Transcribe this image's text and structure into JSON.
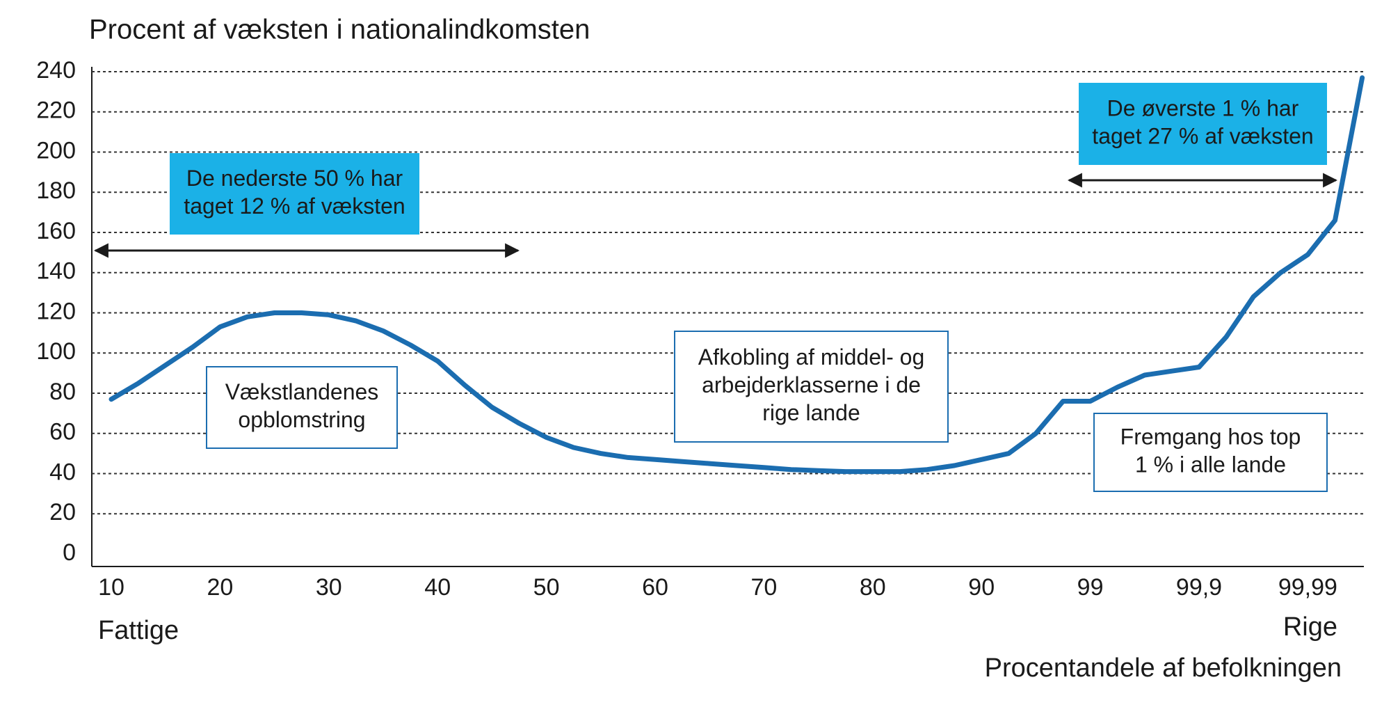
{
  "chart_data": {
    "type": "line",
    "title": "Procent af væksten i nationalindkomsten",
    "x_label": "Procentandele af befolkningen",
    "x_left_label": "Fattige",
    "x_right_label": "Rige",
    "categories": [
      "10",
      null,
      null,
      null,
      "20",
      null,
      null,
      null,
      "30",
      null,
      null,
      null,
      "40",
      null,
      null,
      null,
      "50",
      null,
      null,
      null,
      "60",
      null,
      null,
      null,
      "70",
      null,
      null,
      null,
      "80",
      null,
      null,
      null,
      "90",
      null,
      null,
      null,
      "99",
      null,
      null,
      null,
      "99,9",
      null,
      null,
      null,
      "99,99",
      null,
      null
    ],
    "values": [
      77,
      85,
      94,
      103,
      113,
      118,
      120,
      120,
      119,
      116,
      111,
      104,
      96,
      84,
      73,
      65,
      58,
      53,
      50,
      48,
      47,
      46,
      45,
      44,
      43,
      42,
      41.5,
      41,
      41,
      41,
      42,
      44,
      47,
      50,
      60,
      76,
      76,
      83,
      89,
      91,
      93,
      108,
      128,
      140,
      149,
      166,
      237
    ],
    "color": "#1b6db0",
    "ylim": [
      0,
      240
    ],
    "yticks": [
      0,
      20,
      40,
      60,
      80,
      100,
      120,
      140,
      160,
      180,
      200,
      220,
      240
    ],
    "grid": true,
    "annotations": [
      {
        "lines": [
          "De nederste 50 % har",
          "taget 12 % af væksten"
        ],
        "style": "filled"
      },
      {
        "lines": [
          "De øverste 1 % har",
          "taget 27 % af væksten"
        ],
        "style": "filled"
      },
      {
        "lines": [
          "Vækstlandenes",
          "opblomstring"
        ],
        "style": "outlined"
      },
      {
        "lines": [
          "Afkobling af middel- og",
          "arbejderklasserne i de",
          "rige lande"
        ],
        "style": "outlined"
      },
      {
        "lines": [
          "Fremgang hos top",
          "1 % i alle lande"
        ],
        "style": "outlined"
      }
    ]
  }
}
